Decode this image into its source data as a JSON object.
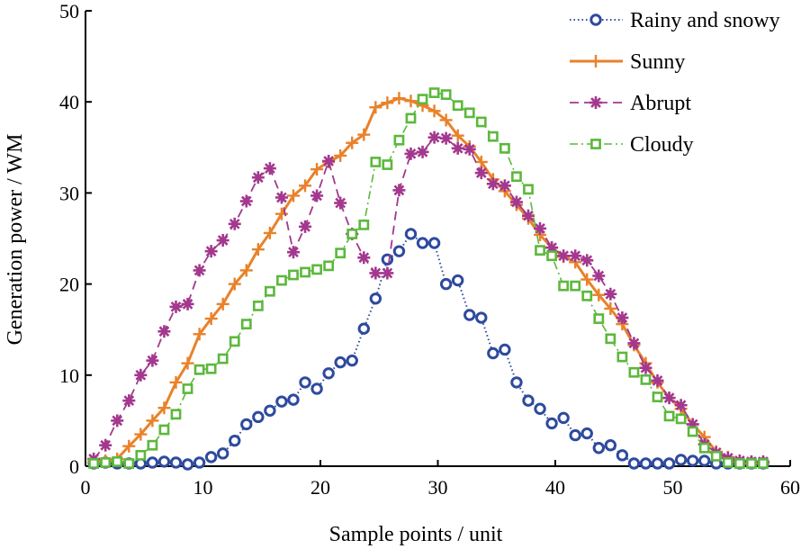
{
  "chart_data": {
    "type": "line",
    "title": "",
    "xlabel": "Sample points / unit",
    "ylabel": "Generation power / WM",
    "xlim": [
      0,
      60
    ],
    "ylim": [
      0,
      50
    ],
    "xticks": [
      0,
      10,
      20,
      30,
      40,
      50,
      60
    ],
    "yticks": [
      0,
      10,
      20,
      30,
      40,
      50
    ],
    "grid": false,
    "legend_position": "top-right",
    "series": [
      {
        "name": "Rainy and snowy",
        "color": "#2e4a9e",
        "line_style": "dotted",
        "marker": "circle",
        "x": [
          0.7,
          1.7,
          2.7,
          3.7,
          4.7,
          5.7,
          6.7,
          7.7,
          8.7,
          9.7,
          10.7,
          11.7,
          12.7,
          13.7,
          14.7,
          15.7,
          16.7,
          17.7,
          18.7,
          19.7,
          20.7,
          21.7,
          22.7,
          23.7,
          24.7,
          25.7,
          26.7,
          27.7,
          28.7,
          29.7,
          30.7,
          31.7,
          32.7,
          33.7,
          34.7,
          35.7,
          36.7,
          37.7,
          38.7,
          39.7,
          40.7,
          41.7,
          42.7,
          43.7,
          44.7,
          45.7,
          46.7,
          47.7,
          48.7,
          49.7,
          50.7,
          51.7,
          52.7,
          53.7,
          54.7,
          55.7,
          56.7,
          57.7
        ],
        "values": [
          0.3,
          0.4,
          0.3,
          0.3,
          0.3,
          0.4,
          0.5,
          0.4,
          0.2,
          0.4,
          1.0,
          1.4,
          2.8,
          4.6,
          5.4,
          6.1,
          7.1,
          7.3,
          9.2,
          8.5,
          10.2,
          11.4,
          11.6,
          15.1,
          18.4,
          22.7,
          23.6,
          25.5,
          24.5,
          24.5,
          20.0,
          20.4,
          16.6,
          16.3,
          12.4,
          12.8,
          9.2,
          7.2,
          6.3,
          4.7,
          5.3,
          3.4,
          3.6,
          2.0,
          2.3,
          1.2,
          0.3,
          0.3,
          0.3,
          0.3,
          0.7,
          0.6,
          0.6,
          0.3,
          0.3,
          0.3,
          0.3,
          0.3
        ]
      },
      {
        "name": "Sunny",
        "color": "#e8822a",
        "line_style": "solid",
        "marker": "plus",
        "x": [
          0.7,
          1.7,
          2.7,
          3.7,
          4.7,
          5.7,
          6.7,
          7.7,
          8.7,
          9.7,
          10.7,
          11.7,
          12.7,
          13.7,
          14.7,
          15.7,
          16.7,
          17.7,
          18.7,
          19.7,
          20.7,
          21.7,
          22.7,
          23.7,
          24.7,
          25.7,
          26.7,
          27.7,
          28.7,
          29.7,
          30.7,
          31.7,
          32.7,
          33.7,
          34.7,
          35.7,
          36.7,
          37.7,
          38.7,
          39.7,
          40.7,
          41.7,
          42.7,
          43.7,
          44.7,
          45.7,
          46.7,
          47.7,
          48.7,
          49.7,
          50.7,
          51.7,
          52.7,
          53.7,
          54.7,
          55.7,
          56.7,
          57.7
        ],
        "values": [
          0.5,
          0.6,
          0.8,
          2.2,
          3.5,
          5.0,
          6.4,
          9.2,
          11.3,
          14.5,
          16.2,
          17.8,
          20.0,
          21.5,
          23.8,
          25.6,
          27.7,
          29.7,
          30.8,
          32.6,
          33.4,
          34.1,
          35.5,
          36.4,
          39.4,
          39.9,
          40.4,
          40.1,
          39.6,
          39.0,
          38.0,
          36.3,
          35.1,
          33.4,
          31.5,
          30.2,
          28.7,
          27.2,
          25.4,
          24.0,
          23.0,
          22.4,
          20.5,
          18.8,
          17.3,
          15.6,
          13.3,
          11.3,
          9.2,
          7.5,
          6.3,
          4.6,
          3.2,
          1.6,
          1.0,
          0.5,
          0.4,
          0.4
        ]
      },
      {
        "name": "Abrupt",
        "color": "#a3388e",
        "line_style": "dashed",
        "marker": "asterisk",
        "x": [
          0.7,
          1.7,
          2.7,
          3.7,
          4.7,
          5.7,
          6.7,
          7.7,
          8.7,
          9.7,
          10.7,
          11.7,
          12.7,
          13.7,
          14.7,
          15.7,
          16.7,
          17.7,
          18.7,
          19.7,
          20.7,
          21.7,
          22.7,
          23.7,
          24.7,
          25.7,
          26.7,
          27.7,
          28.7,
          29.7,
          30.7,
          31.7,
          32.7,
          33.7,
          34.7,
          35.7,
          36.7,
          37.7,
          38.7,
          39.7,
          40.7,
          41.7,
          42.7,
          43.7,
          44.7,
          45.7,
          46.7,
          47.7,
          48.7,
          49.7,
          50.7,
          51.7,
          52.7,
          53.7,
          54.7,
          55.7,
          56.7,
          57.7
        ],
        "values": [
          0.8,
          2.3,
          5.0,
          7.2,
          10.0,
          11.6,
          14.8,
          17.5,
          17.8,
          21.5,
          23.6,
          24.8,
          26.6,
          29.1,
          31.7,
          32.7,
          29.5,
          23.5,
          26.3,
          29.7,
          33.5,
          28.9,
          25.5,
          22.9,
          21.2,
          21.2,
          30.3,
          34.3,
          34.5,
          36.1,
          36.0,
          34.9,
          34.8,
          32.2,
          31.0,
          30.8,
          29.0,
          27.5,
          26.1,
          24.0,
          23.1,
          23.1,
          22.6,
          20.9,
          18.9,
          16.3,
          13.5,
          10.8,
          9.4,
          7.5,
          6.7,
          4.6,
          2.4,
          1.5,
          0.9,
          0.6,
          0.5,
          0.5
        ]
      },
      {
        "name": "Cloudy",
        "color": "#5cb83c",
        "line_style": "dashdot",
        "marker": "square",
        "x": [
          0.7,
          1.7,
          2.7,
          3.7,
          4.7,
          5.7,
          6.7,
          7.7,
          8.7,
          9.7,
          10.7,
          11.7,
          12.7,
          13.7,
          14.7,
          15.7,
          16.7,
          17.7,
          18.7,
          19.7,
          20.7,
          21.7,
          22.7,
          23.7,
          24.7,
          25.7,
          26.7,
          27.7,
          28.7,
          29.7,
          30.7,
          31.7,
          32.7,
          33.7,
          34.7,
          35.7,
          36.7,
          37.7,
          38.7,
          39.7,
          40.7,
          41.7,
          42.7,
          43.7,
          44.7,
          45.7,
          46.7,
          47.7,
          48.7,
          49.7,
          50.7,
          51.7,
          52.7,
          53.7,
          54.7,
          55.7,
          56.7,
          57.7
        ],
        "values": [
          0.3,
          0.4,
          0.5,
          0.3,
          1.2,
          2.3,
          4.0,
          5.7,
          8.5,
          10.6,
          10.7,
          11.8,
          13.7,
          15.6,
          17.6,
          19.2,
          20.4,
          21.0,
          21.3,
          21.6,
          22.0,
          23.4,
          25.5,
          26.5,
          33.4,
          33.1,
          35.8,
          38.2,
          40.3,
          41.0,
          40.8,
          39.6,
          38.8,
          37.8,
          36.2,
          34.9,
          31.8,
          30.4,
          23.7,
          23.1,
          19.8,
          19.8,
          18.7,
          16.2,
          14.0,
          12.0,
          10.3,
          9.5,
          7.6,
          5.5,
          5.2,
          3.8,
          2.0,
          1.1,
          0.4,
          0.3,
          0.3,
          0.3
        ]
      }
    ]
  }
}
